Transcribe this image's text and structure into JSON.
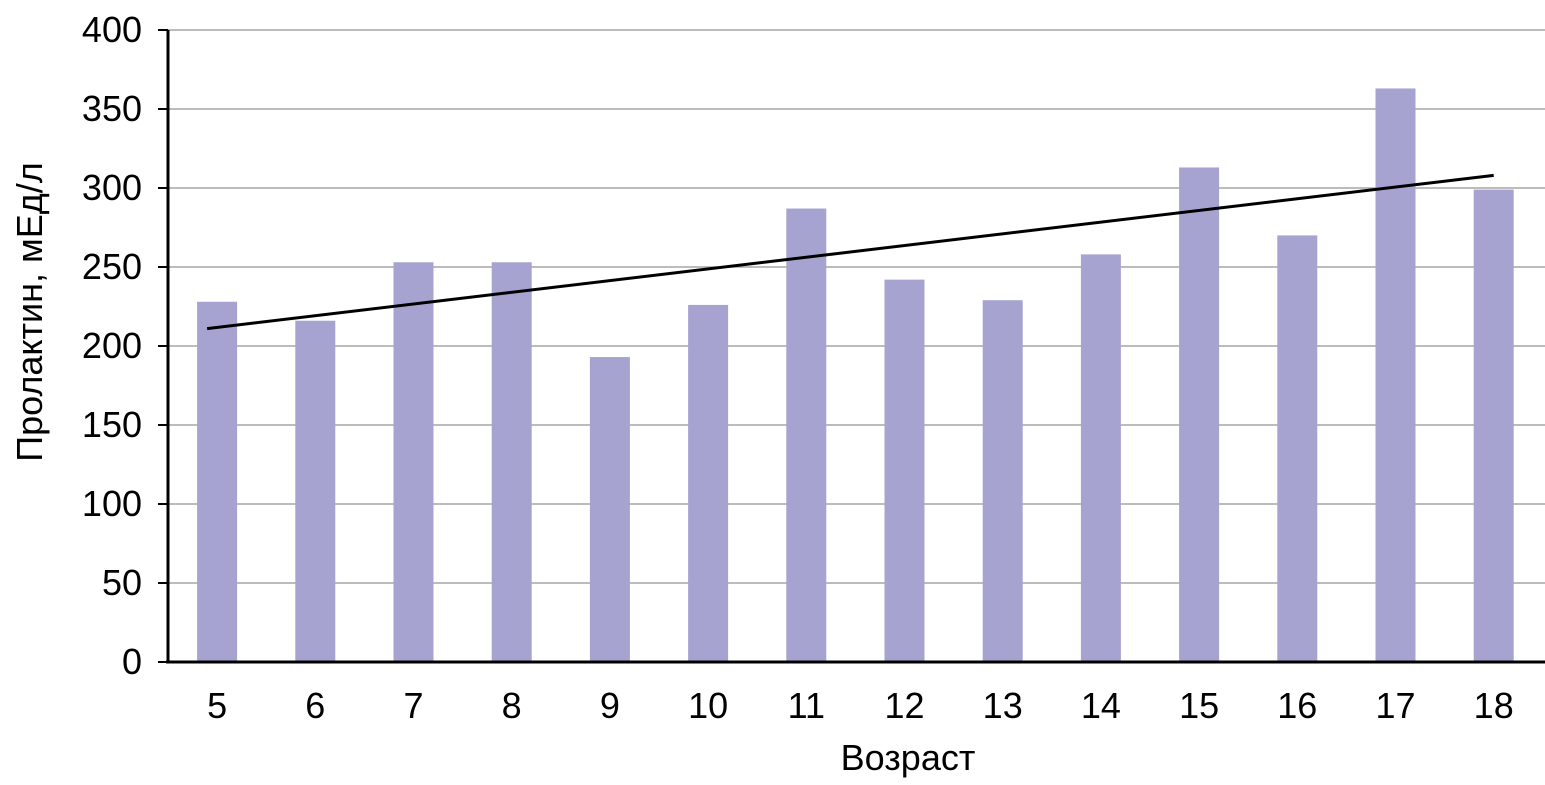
{
  "chart_data": {
    "type": "bar",
    "title": "",
    "xlabel": "Возраст",
    "ylabel": "Пролактин, мЕд/л",
    "categories": [
      "5",
      "6",
      "7",
      "8",
      "9",
      "10",
      "11",
      "12",
      "13",
      "14",
      "15",
      "16",
      "17",
      "18"
    ],
    "series": [
      {
        "values": [
          228,
          216,
          253,
          253,
          193,
          226,
          287,
          242,
          229,
          258,
          313,
          270,
          363,
          299
        ]
      }
    ],
    "trendline": {
      "type": "linear",
      "start": 211,
      "end": 308
    },
    "ylim": [
      0,
      400
    ],
    "yticks": [
      0,
      50,
      100,
      150,
      200,
      250,
      300,
      350,
      400
    ],
    "grid": true,
    "legend": "none",
    "colors": {
      "bar": "#a7a3d1",
      "trendline": "#000000",
      "grid": "#a6a6a6",
      "axis": "#000000"
    }
  }
}
